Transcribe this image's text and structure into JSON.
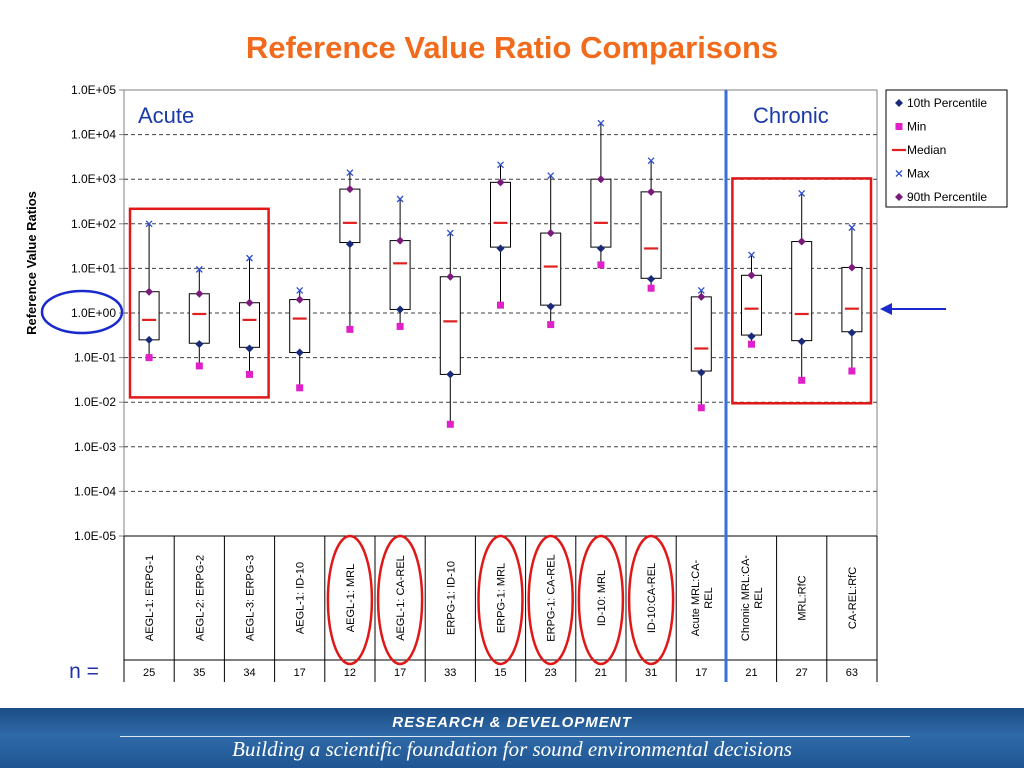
{
  "title": "Reference Value Ratio Comparisons",
  "chart_data": {
    "type": "box",
    "ylabel": "Reference Value Ratios",
    "yscale": "log",
    "ylim": [
      1e-05,
      100000
    ],
    "y_tick_labels": [
      "1.0E-05",
      "1.0E-04",
      "1.0E-03",
      "1.0E-02",
      "1.0E-01",
      "1.0E+00",
      "1.0E+01",
      "1.0E+02",
      "1.0E+03",
      "1.0E+04",
      "1.0E+05"
    ],
    "grid": "horizontal dashed",
    "legend_position": "right",
    "legend": [
      {
        "key": "p10",
        "label": "10th Percentile",
        "color": "#1a2a7a",
        "marker": "diamond"
      },
      {
        "key": "min",
        "label": "Min",
        "color": "#e020c8",
        "marker": "square"
      },
      {
        "key": "median",
        "label": "Median",
        "color": "#e02020",
        "marker": "dash"
      },
      {
        "key": "max",
        "label": "Max",
        "color": "#3050d0",
        "marker": "x"
      },
      {
        "key": "p90",
        "label": "90th Percentile",
        "color": "#7a1a7a",
        "marker": "diamond"
      }
    ],
    "section_labels": {
      "acute": "Acute",
      "chronic": "Chronic"
    },
    "n_label": "n =",
    "categories": [
      "AEGL-1: ERPG-1",
      "AEGL-2: ERPG-2",
      "AEGL-3: ERPG-3",
      "AEGL-1: ID-10",
      "AEGL-1: MRL",
      "AEGL-1: CA-REL",
      "ERPG-1: ID-10",
      "ERPG-1: MRL",
      "ERPG-1: CA-REL",
      "ID-10: MRL",
      "ID-10:CA-REL",
      "Acute MRL:CA-REL",
      "Chronic MRL:CA-REL",
      "MRL:RfC",
      "CA-REL:RfC"
    ],
    "n": [
      25,
      35,
      34,
      17,
      12,
      17,
      33,
      15,
      23,
      21,
      31,
      17,
      21,
      27,
      63
    ],
    "min": [
      0.1,
      0.065,
      0.042,
      0.021,
      0.43,
      0.5,
      0.0032,
      1.5,
      0.55,
      12,
      3.6,
      0.0075,
      0.2,
      0.031,
      0.05
    ],
    "p10": [
      0.25,
      0.2,
      0.16,
      0.13,
      35,
      1.2,
      0.042,
      28,
      1.4,
      28,
      5.8,
      0.046,
      0.3,
      0.23,
      0.36
    ],
    "q1": [
      0.25,
      0.21,
      0.17,
      0.13,
      38,
      1.2,
      0.042,
      30,
      1.5,
      30,
      6,
      0.05,
      0.32,
      0.24,
      0.38
    ],
    "median": [
      0.7,
      0.95,
      0.7,
      0.75,
      105,
      13,
      0.65,
      105,
      11,
      105,
      28,
      0.16,
      1.25,
      0.95,
      1.25
    ],
    "q3": [
      3,
      2.7,
      1.7,
      2,
      600,
      42,
      6.5,
      850,
      62,
      1000,
      520,
      2.3,
      7,
      40,
      10.5
    ],
    "p90": [
      3,
      2.7,
      1.7,
      2,
      600,
      42,
      6.5,
      850,
      62,
      1000,
      520,
      2.3,
      7,
      40,
      10.5
    ],
    "max": [
      100,
      9.5,
      17,
      3.2,
      1400,
      360,
      62,
      2100,
      1200,
      18000,
      2600,
      3.2,
      20,
      480,
      82
    ],
    "annotations": {
      "acute_box": [
        "AEGL-1: ERPG-1",
        "AEGL-2: ERPG-2",
        "AEGL-3: ERPG-3"
      ],
      "chronic_box": [
        "Chronic MRL:CA-REL",
        "MRL:RfC",
        "CA-REL:RfC"
      ],
      "circled_categories": [
        "AEGL-1: MRL",
        "AEGL-1: CA-REL",
        "ERPG-1: MRL",
        "ERPG-1: CA-REL",
        "ID-10: MRL",
        "ID-10:CA-REL"
      ],
      "circled_tick": "1.0E+00",
      "arrow_at": 1
    }
  },
  "footer": {
    "heading": "RESEARCH &  DEVELOPMENT",
    "tagline": "Building a scientific foundation for sound environmental decisions"
  }
}
